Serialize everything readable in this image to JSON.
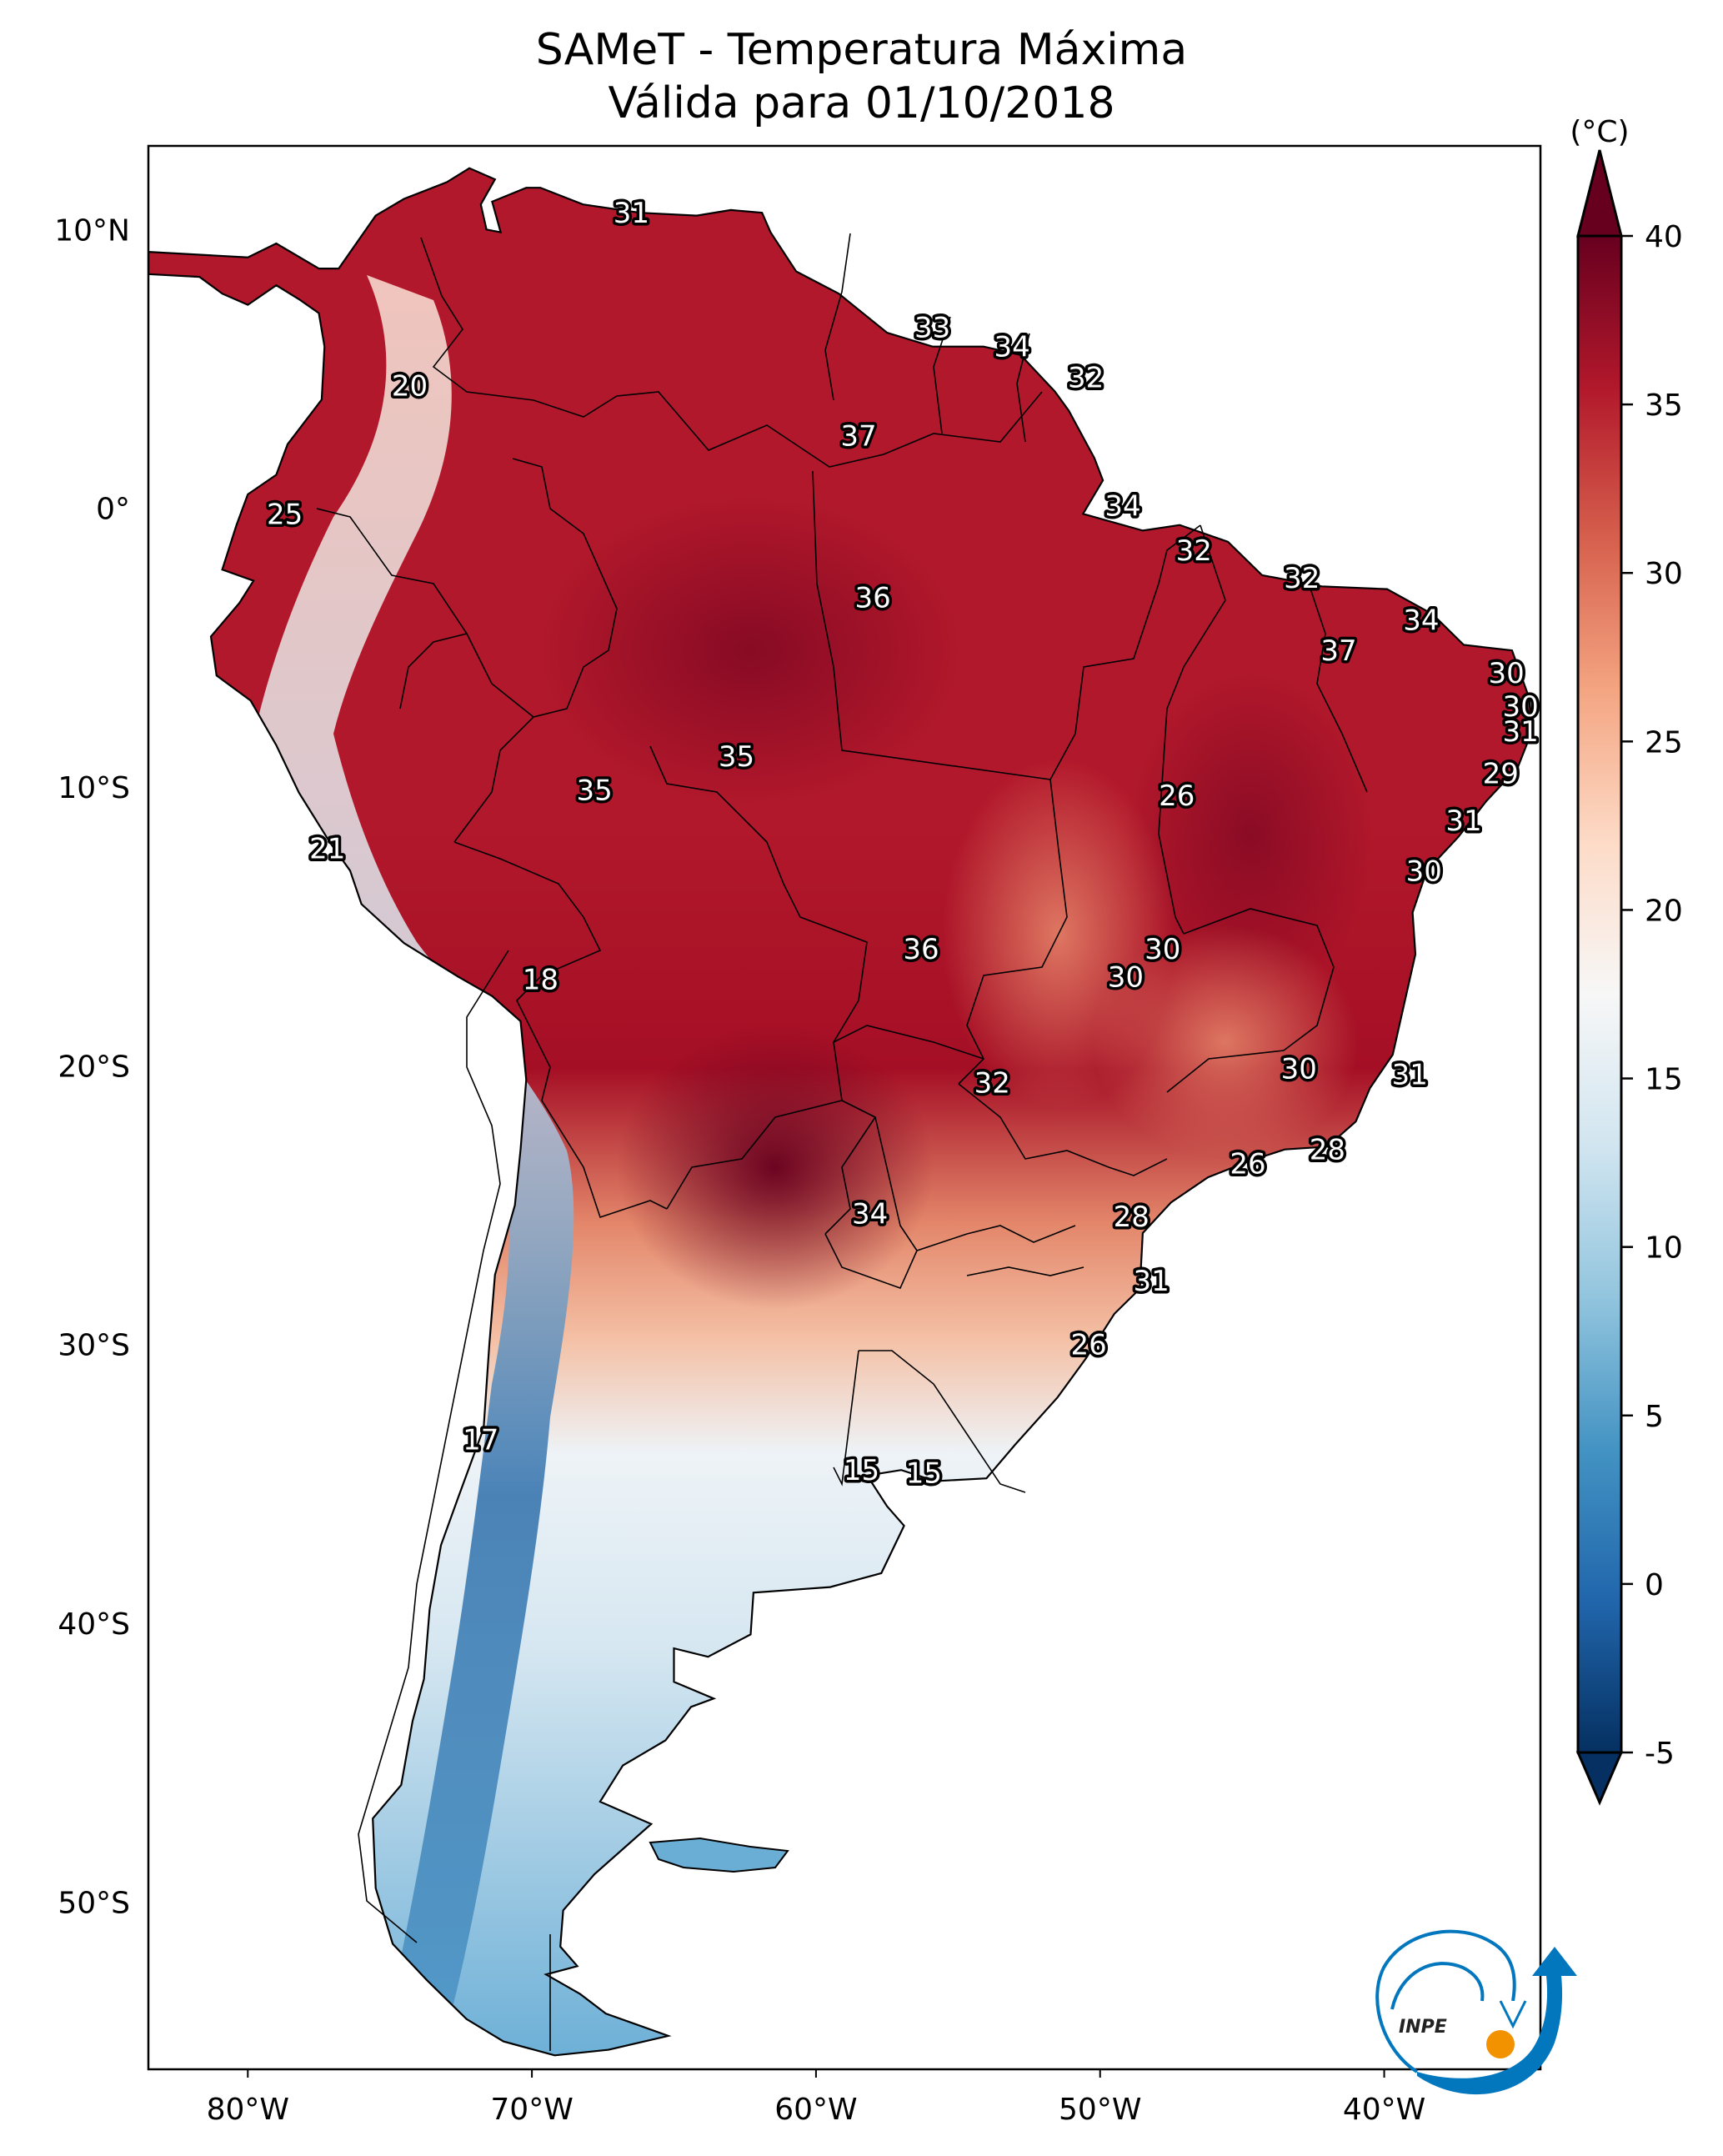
{
  "chart_data": {
    "type": "heatmap",
    "title": "SAMeT - Temperatura Máxima",
    "subtitle": "Válida para 01/10/2018",
    "variable": "Maximum temperature",
    "colorbar": {
      "label": "(°C)",
      "min": -5,
      "max": 40,
      "ticks": [
        -5,
        0,
        5,
        10,
        15,
        20,
        25,
        30,
        35,
        40
      ],
      "tick_labels": [
        "-5",
        "0",
        "5",
        "10",
        "15",
        "20",
        "25",
        "30",
        "35",
        "40"
      ],
      "extend": "both",
      "colormap": "RdBu_r",
      "colors": [
        "#053061",
        "#2166ac",
        "#4393c3",
        "#92c5de",
        "#d1e5f0",
        "#f7f7f7",
        "#fddbc7",
        "#f4a582",
        "#d6604d",
        "#b2182b",
        "#67001f"
      ]
    },
    "x_axis": {
      "range": [
        -83.5,
        -34.5
      ],
      "ticks": [
        -80,
        -70,
        -60,
        -50,
        -40
      ],
      "tick_labels": [
        "80°W",
        "70°W",
        "60°W",
        "50°W",
        "40°W"
      ]
    },
    "y_axis": {
      "range": [
        -56,
        13
      ],
      "ticks": [
        10,
        0,
        -10,
        -20,
        -30,
        -40,
        -50
      ],
      "tick_labels": [
        "10°N",
        "0°",
        "10°S",
        "20°S",
        "30°S",
        "40°S",
        "50°S"
      ]
    },
    "grid": false,
    "annotations": [
      {
        "value": 31,
        "lon": -66.5,
        "lat": 10.6
      },
      {
        "value": 20,
        "lon": -74.3,
        "lat": 4.4
      },
      {
        "value": 33,
        "lon": -55.9,
        "lat": 6.5
      },
      {
        "value": 34,
        "lon": -53.1,
        "lat": 5.8
      },
      {
        "value": 32,
        "lon": -50.5,
        "lat": 4.7
      },
      {
        "value": 37,
        "lon": -58.5,
        "lat": 2.6
      },
      {
        "value": 25,
        "lon": -78.7,
        "lat": -0.2
      },
      {
        "value": 34,
        "lon": -49.2,
        "lat": 0.1
      },
      {
        "value": 32,
        "lon": -46.7,
        "lat": -1.5
      },
      {
        "value": 36,
        "lon": -58.0,
        "lat": -3.2
      },
      {
        "value": 32,
        "lon": -42.9,
        "lat": -2.5
      },
      {
        "value": 34,
        "lon": -38.7,
        "lat": -4.0
      },
      {
        "value": 37,
        "lon": -41.6,
        "lat": -5.1
      },
      {
        "value": 30,
        "lon": -35.7,
        "lat": -5.9
      },
      {
        "value": 30,
        "lon": -35.2,
        "lat": -7.1
      },
      {
        "value": 31,
        "lon": -35.2,
        "lat": -8.0
      },
      {
        "value": 35,
        "lon": -62.8,
        "lat": -8.9
      },
      {
        "value": 35,
        "lon": -67.8,
        "lat": -10.1
      },
      {
        "value": 29,
        "lon": -35.9,
        "lat": -9.5
      },
      {
        "value": 26,
        "lon": -47.3,
        "lat": -10.3
      },
      {
        "value": 31,
        "lon": -37.2,
        "lat": -11.2
      },
      {
        "value": 21,
        "lon": -77.2,
        "lat": -12.2
      },
      {
        "value": 30,
        "lon": -38.6,
        "lat": -13.0
      },
      {
        "value": 36,
        "lon": -56.3,
        "lat": -15.8
      },
      {
        "value": 30,
        "lon": -47.8,
        "lat": -15.8
      },
      {
        "value": 30,
        "lon": -49.1,
        "lat": -16.8
      },
      {
        "value": 18,
        "lon": -69.7,
        "lat": -16.9
      },
      {
        "value": 30,
        "lon": -43.0,
        "lat": -20.1
      },
      {
        "value": 31,
        "lon": -39.1,
        "lat": -20.3
      },
      {
        "value": 32,
        "lon": -53.8,
        "lat": -20.6
      },
      {
        "value": 28,
        "lon": -42.0,
        "lat": -23.0
      },
      {
        "value": 26,
        "lon": -44.8,
        "lat": -23.5
      },
      {
        "value": 34,
        "lon": -58.1,
        "lat": -25.3
      },
      {
        "value": 28,
        "lon": -48.9,
        "lat": -25.4
      },
      {
        "value": 31,
        "lon": -48.2,
        "lat": -27.7
      },
      {
        "value": 26,
        "lon": -50.4,
        "lat": -30.0
      },
      {
        "value": 17,
        "lon": -71.8,
        "lat": -33.4
      },
      {
        "value": 15,
        "lon": -58.4,
        "lat": -34.5
      },
      {
        "value": 15,
        "lon": -56.2,
        "lat": -34.6
      }
    ]
  },
  "logo": {
    "text": "INPE",
    "ring_color": "#0277bd",
    "sun_color": "#f39200"
  }
}
